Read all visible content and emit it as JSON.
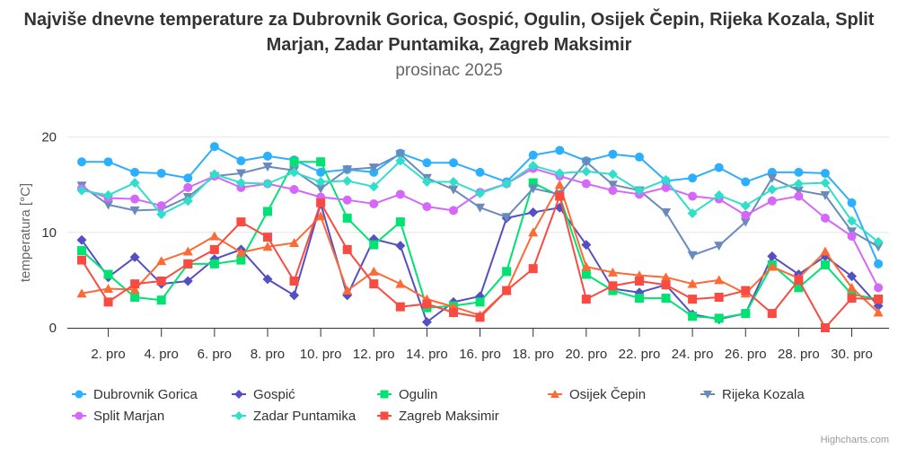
{
  "chart_data": {
    "type": "line",
    "title": "Najviše dnevne temperature za Dubrovnik Gorica, Gospić, Ogulin, Osijek Čepin, Rijeka Kozala, Split Marjan, Zadar Puntamika, Zagreb Maksimir",
    "subtitle": "prosinac 2025",
    "ylabel": "temperatura [°C]",
    "xlabel": "",
    "ylim": [
      0,
      20
    ],
    "yticks": [
      0,
      10,
      20
    ],
    "grid": true,
    "legend": "bottom",
    "x": [
      1,
      2,
      3,
      4,
      5,
      6,
      7,
      8,
      9,
      10,
      11,
      12,
      13,
      14,
      15,
      16,
      17,
      18,
      19,
      20,
      21,
      22,
      23,
      24,
      25,
      26,
      27,
      28,
      29,
      30,
      31
    ],
    "xtick_labels": [
      "2. pro",
      "4. pro",
      "6. pro",
      "8. pro",
      "10. pro",
      "12. pro",
      "14. pro",
      "16. pro",
      "18. pro",
      "20. pro",
      "22. pro",
      "24. pro",
      "26. pro",
      "28. pro",
      "30. pro"
    ],
    "series": [
      {
        "name": "Dubrovnik Gorica",
        "color": "#2caffe",
        "marker": "circle",
        "values": [
          17.4,
          17.4,
          16.3,
          16.2,
          15.7,
          19.0,
          17.5,
          18.0,
          17.6,
          16.3,
          16.6,
          16.3,
          18.3,
          17.3,
          17.3,
          16.3,
          15.3,
          18.1,
          18.6,
          17.5,
          18.2,
          17.9,
          15.4,
          15.7,
          16.8,
          15.3,
          16.3,
          16.3,
          16.2,
          13.1,
          6.7
        ]
      },
      {
        "name": "Gospić",
        "color": "#544fc5",
        "marker": "diamond",
        "values": [
          9.2,
          5.3,
          7.4,
          4.6,
          4.9,
          7.2,
          8.2,
          5.1,
          3.4,
          13.0,
          3.4,
          9.3,
          8.6,
          0.6,
          2.7,
          3.3,
          11.5,
          12.1,
          12.6,
          8.7,
          4.1,
          3.7,
          4.5,
          1.4,
          0.9,
          1.5,
          7.5,
          5.6,
          7.5,
          5.4,
          2.3
        ]
      },
      {
        "name": "Ogulin",
        "color": "#00e272",
        "marker": "square",
        "values": [
          8.1,
          5.6,
          3.2,
          2.9,
          6.7,
          6.7,
          7.1,
          12.2,
          17.4,
          17.4,
          11.5,
          8.7,
          11.1,
          2.1,
          2.3,
          2.7,
          5.9,
          15.2,
          13.8,
          5.6,
          3.9,
          3.1,
          3.1,
          1.2,
          1.0,
          1.5,
          6.6,
          4.2,
          6.6,
          3.5,
          3.0
        ]
      },
      {
        "name": "Osijek Čepin",
        "color": "#fe6a35",
        "marker": "triangle",
        "values": [
          3.6,
          4.1,
          4.0,
          7.0,
          8.0,
          9.6,
          7.9,
          8.5,
          8.9,
          11.7,
          3.9,
          5.9,
          4.6,
          3.0,
          2.2,
          1.3,
          3.9,
          10.0,
          15.0,
          6.4,
          5.8,
          5.5,
          5.3,
          4.6,
          5.0,
          3.6,
          6.4,
          5.2,
          8.0,
          4.2,
          1.6
        ]
      },
      {
        "name": "Rijeka Kozala",
        "color": "#6b8abc",
        "marker": "triangle-down",
        "values": [
          14.9,
          12.9,
          12.3,
          12.4,
          13.7,
          15.9,
          16.2,
          16.9,
          16.5,
          14.6,
          16.6,
          16.8,
          18.2,
          15.7,
          14.5,
          12.6,
          11.6,
          14.6,
          14.0,
          17.4,
          15.0,
          14.4,
          12.1,
          7.6,
          8.6,
          11.1,
          15.7,
          14.4,
          13.9,
          10.1,
          8.5
        ]
      },
      {
        "name": "Split Marjan",
        "color": "#d568fb",
        "marker": "circle",
        "values": [
          14.6,
          13.6,
          13.5,
          12.8,
          14.7,
          15.9,
          14.7,
          15.1,
          14.5,
          13.7,
          13.4,
          13.0,
          14.0,
          12.7,
          12.3,
          14.2,
          15.1,
          16.7,
          15.9,
          15.1,
          14.4,
          14.0,
          14.7,
          13.8,
          13.5,
          11.8,
          13.3,
          13.8,
          11.5,
          9.6,
          4.2
        ]
      },
      {
        "name": "Zadar Puntamika",
        "color": "#2ee0ca",
        "marker": "diamond",
        "values": [
          14.4,
          13.9,
          15.2,
          11.9,
          13.3,
          16.1,
          15.2,
          15.1,
          16.3,
          15.3,
          15.4,
          14.8,
          17.5,
          15.3,
          15.3,
          14.1,
          15.1,
          17.0,
          16.2,
          16.4,
          16.1,
          14.4,
          15.5,
          12.0,
          13.9,
          12.8,
          14.5,
          15.1,
          15.2,
          11.2,
          9.0
        ]
      },
      {
        "name": "Zagreb Maksimir",
        "color": "#fa4b42",
        "marker": "square",
        "values": [
          7.1,
          2.7,
          4.6,
          4.9,
          6.7,
          8.2,
          11.1,
          9.5,
          4.9,
          13.1,
          8.2,
          4.6,
          2.2,
          2.5,
          1.6,
          1.1,
          3.9,
          6.2,
          13.8,
          3.0,
          4.4,
          4.9,
          4.5,
          3.0,
          3.2,
          3.9,
          1.5,
          5.0,
          0.0,
          3.1,
          3.0
        ]
      }
    ]
  },
  "credits": "Highcharts.com"
}
